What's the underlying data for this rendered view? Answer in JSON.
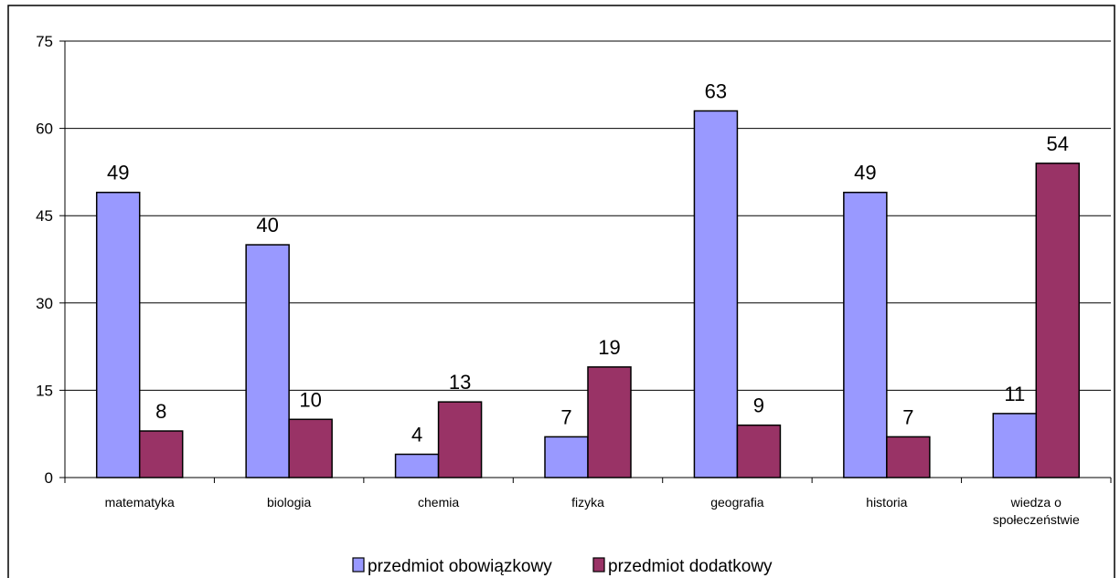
{
  "chart_data": {
    "type": "bar",
    "categories": [
      [
        "matematyka"
      ],
      [
        "biologia"
      ],
      [
        "chemia"
      ],
      [
        "fizyka"
      ],
      [
        "geografia"
      ],
      [
        "historia"
      ],
      [
        "wiedza o",
        "społeczeństwie"
      ]
    ],
    "series": [
      {
        "name": "przedmiot obowiązkowy",
        "values": [
          49,
          40,
          4,
          7,
          63,
          49,
          11
        ],
        "color": "#9999ff"
      },
      {
        "name": "przedmiot dodatkowy",
        "values": [
          8,
          10,
          13,
          19,
          9,
          7,
          54
        ],
        "color": "#993366"
      }
    ],
    "ylim": [
      0,
      75
    ],
    "yticks": [
      0,
      15,
      30,
      45,
      60,
      75
    ],
    "grid": true,
    "legend_position": "bottom",
    "title": "",
    "xlabel": "",
    "ylabel": ""
  }
}
